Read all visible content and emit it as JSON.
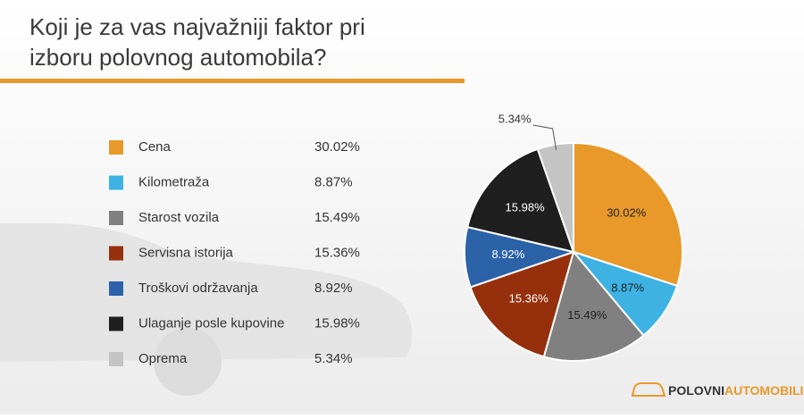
{
  "chart_data": {
    "type": "pie",
    "title": "Koji je za vas najvažniji faktor pri izboru polovnog automobila?",
    "categories": [
      "Cena",
      "Kilometraža",
      "Starost vozila",
      "Servisna istorija",
      "Troškovi održavanja",
      "Ulaganje posle kupovine",
      "Oprema"
    ],
    "values": [
      30.02,
      8.87,
      15.49,
      15.36,
      8.92,
      15.98,
      5.34
    ],
    "value_labels": [
      "30.02%",
      "8.87%",
      "15.49%",
      "15.36%",
      "8.92%",
      "15.98%",
      "5.34%"
    ],
    "colors": [
      "#e8992a",
      "#3db2e3",
      "#808080",
      "#96300c",
      "#2b62a8",
      "#1f1f1f",
      "#c4c4c4"
    ]
  },
  "logo": {
    "part1": "POLOVNI",
    "part2": "AUTOMOBILI"
  }
}
